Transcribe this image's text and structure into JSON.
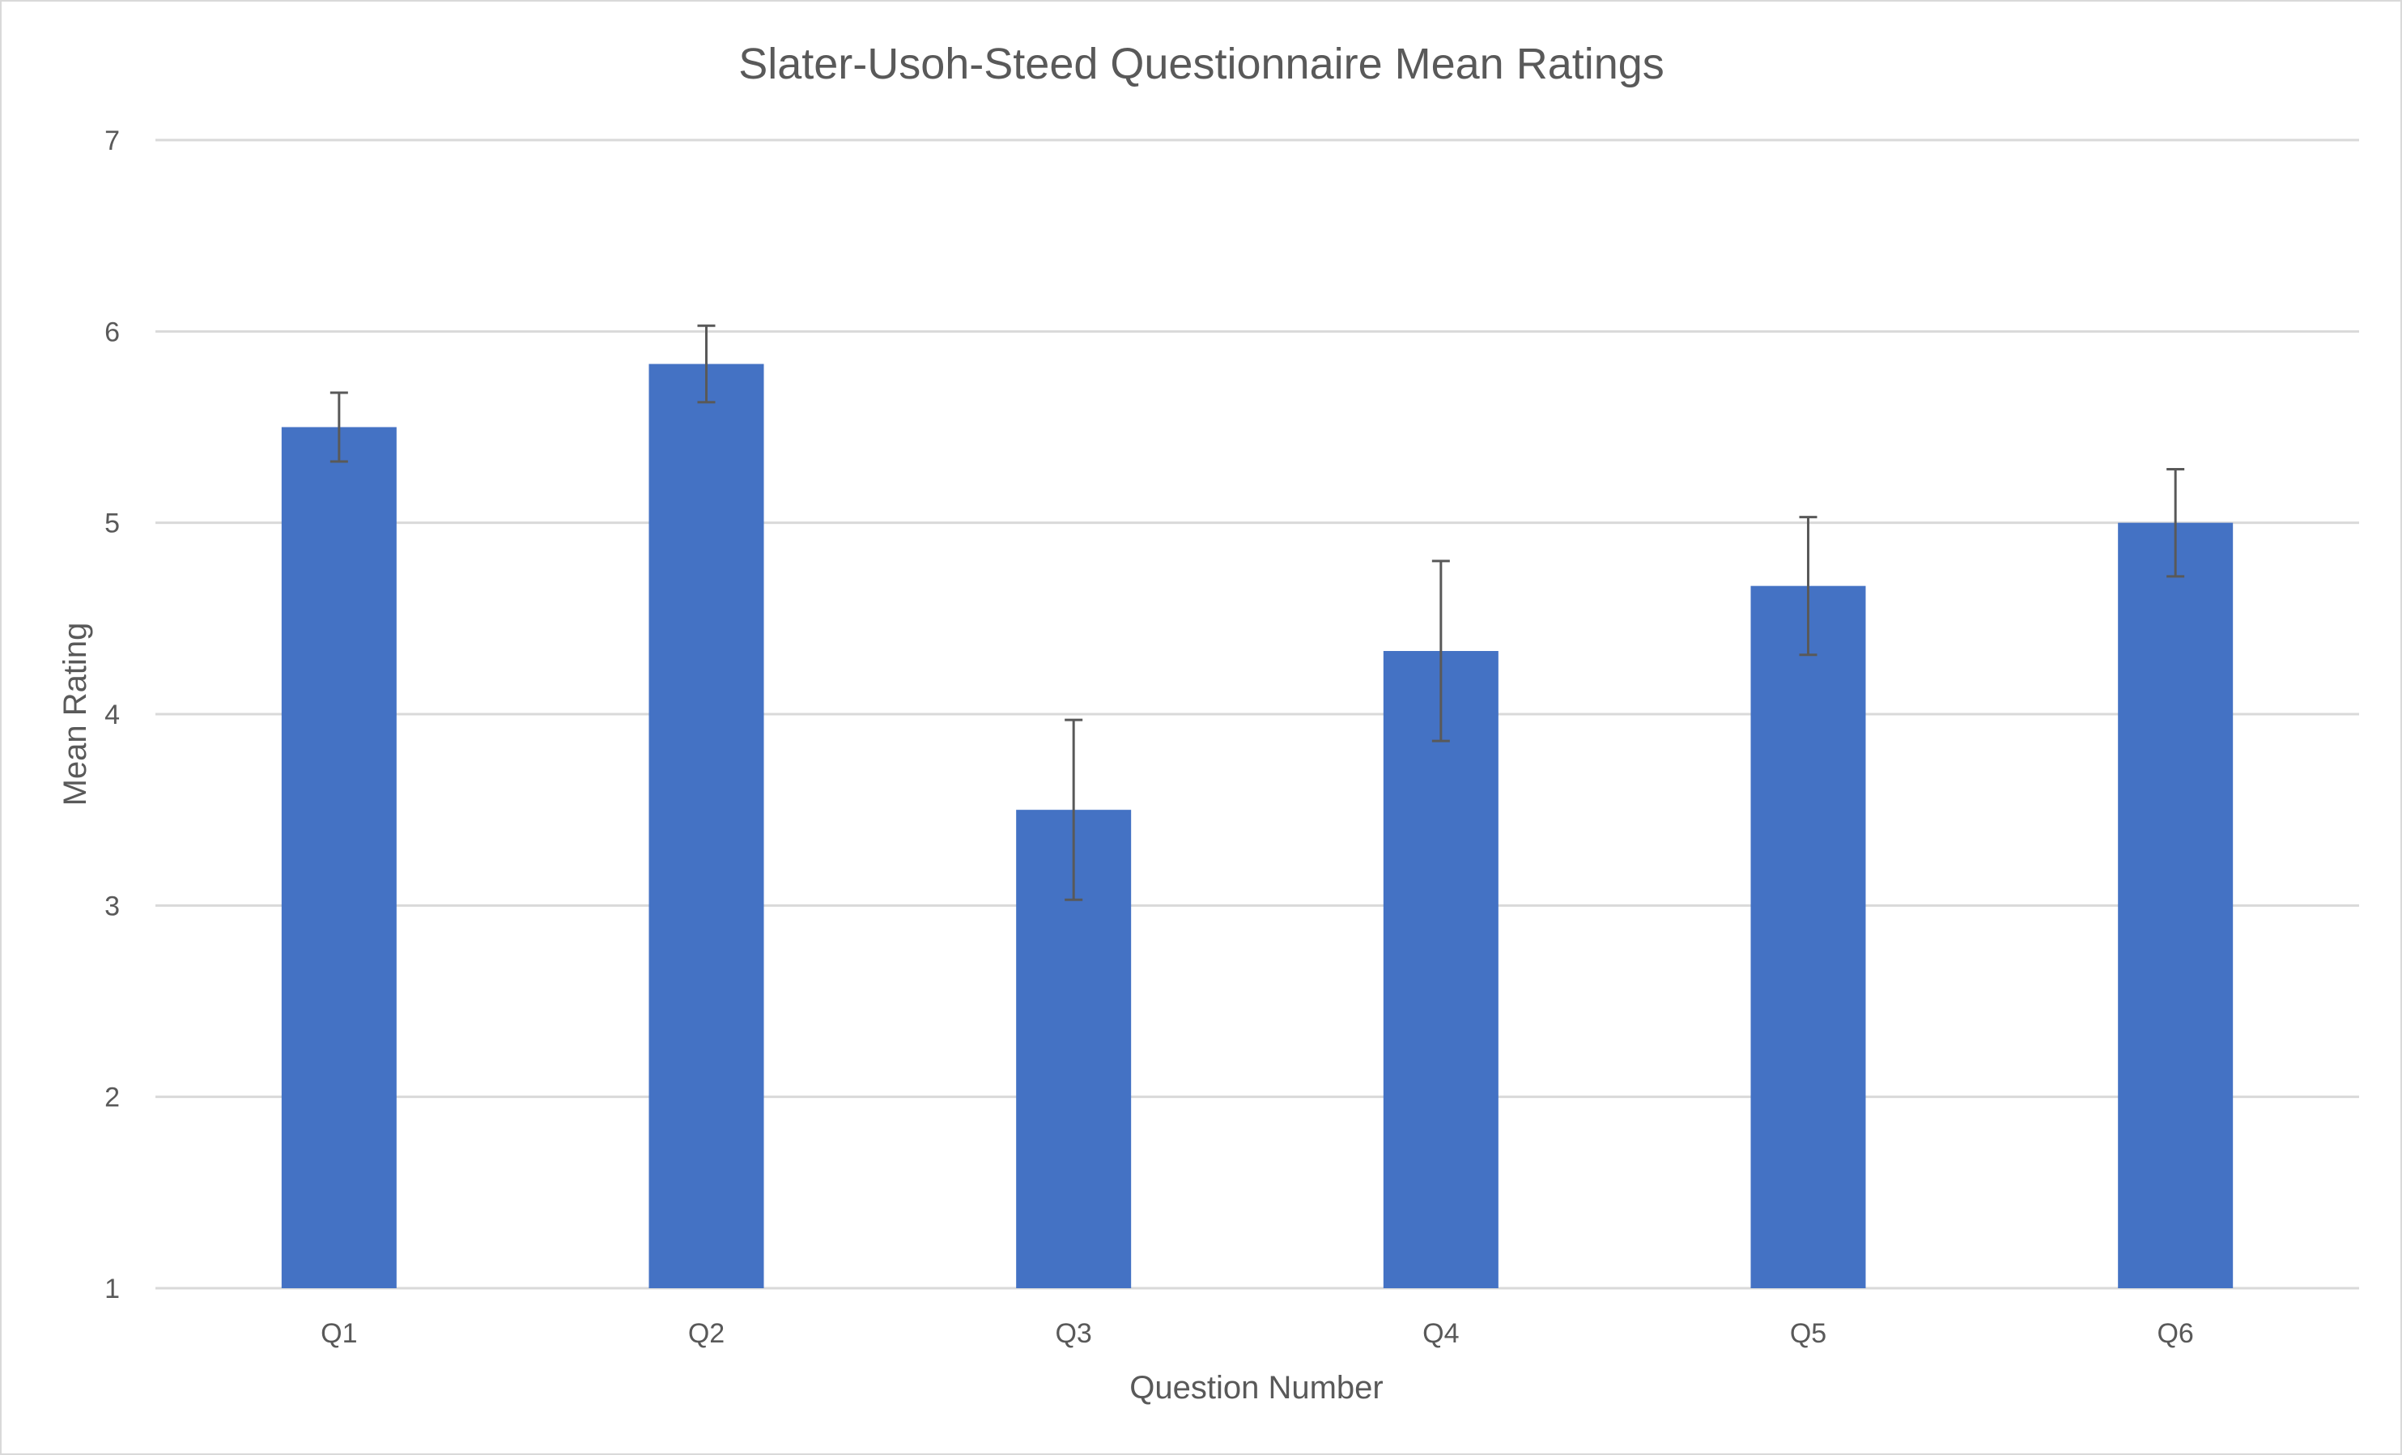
{
  "chart_data": {
    "type": "bar",
    "title": "Slater-Usoh-Steed Questionnaire Mean Ratings",
    "xlabel": "Question Number",
    "ylabel": "Mean Rating",
    "categories": [
      "Q1",
      "Q2",
      "Q3",
      "Q4",
      "Q5",
      "Q6"
    ],
    "series": [
      {
        "values": [
          5.5,
          5.83,
          3.5,
          4.33,
          4.67,
          5.0
        ],
        "error": [
          0.18,
          0.2,
          0.47,
          0.47,
          0.36,
          0.28
        ],
        "color": "#4472c4"
      }
    ],
    "ylim": [
      1,
      7
    ],
    "yticks": [
      1,
      2,
      3,
      4,
      5,
      6,
      7
    ],
    "grid": true,
    "legend": "none"
  }
}
